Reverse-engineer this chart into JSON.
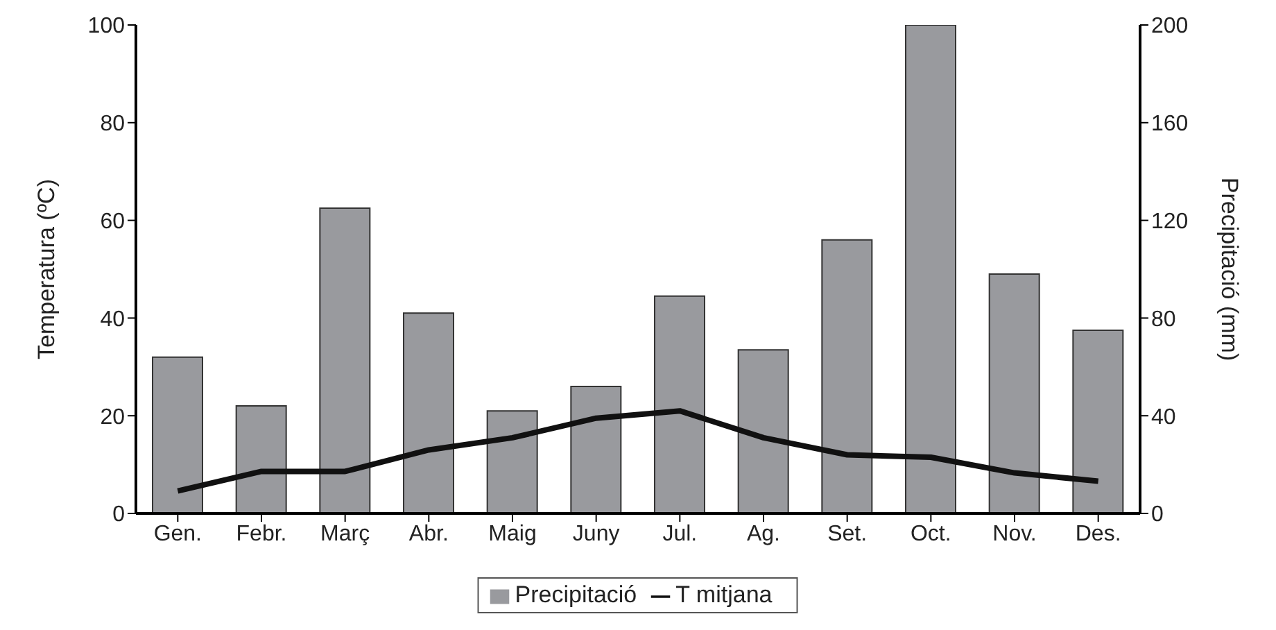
{
  "chart_data": {
    "type": "bar",
    "ylabel": "Temperatura (ºC)",
    "y2label": "Precipitació (mm)",
    "categories": [
      "Gen.",
      "Febr.",
      "Març",
      "Abr.",
      "Maig",
      "Juny",
      "Jul.",
      "Ag.",
      "Set.",
      "Oct.",
      "Nov.",
      "Des."
    ],
    "series": [
      {
        "name": "Precipitació",
        "axis": "y2",
        "color": "#999a9e",
        "values": [
          64,
          44,
          125,
          82,
          42,
          52,
          89,
          67,
          112,
          200,
          98,
          75
        ]
      },
      {
        "name": "T mitjana",
        "type": "line",
        "color": "#111111",
        "values": [
          4.6,
          8.6,
          8.6,
          13,
          15.5,
          19.5,
          21,
          15.5,
          12,
          11.5,
          8.3,
          6.6
        ]
      }
    ],
    "ylim": [
      0,
      100
    ],
    "yticks": [
      0,
      20,
      40,
      60,
      80,
      100
    ],
    "y2lim": [
      0,
      200
    ],
    "y2ticks": [
      0,
      40,
      80,
      120,
      160,
      200
    ],
    "legend": "bottom",
    "marker": "none",
    "line_style": "solid"
  }
}
